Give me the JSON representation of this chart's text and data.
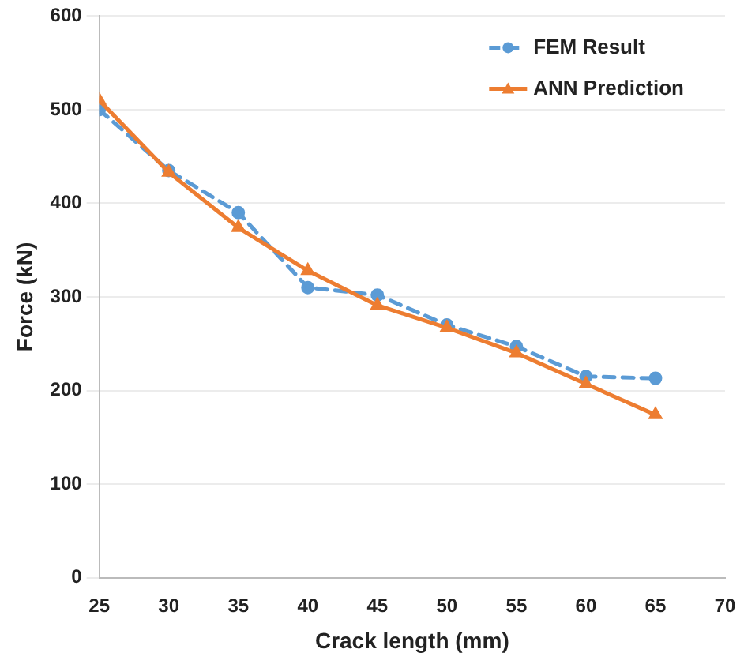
{
  "chart_data": {
    "type": "line",
    "xlabel": "Crack length (mm)",
    "ylabel": "Force (kN)",
    "x": [
      25,
      30,
      35,
      40,
      45,
      50,
      55,
      60,
      65
    ],
    "xlim": [
      25,
      70
    ],
    "xticks": [
      25,
      30,
      35,
      40,
      45,
      50,
      55,
      60,
      65,
      70
    ],
    "ylim": [
      0,
      600
    ],
    "yticks": [
      0,
      100,
      200,
      300,
      400,
      500,
      600
    ],
    "grid": "y",
    "legend": "top right",
    "series": [
      {
        "name": "FEM Result",
        "color": "#5b9bd5",
        "marker": "circle",
        "line_style": "dashed",
        "values": [
          500,
          435,
          390,
          310,
          302,
          270,
          247,
          215,
          213
        ]
      },
      {
        "name": "ANN Prediction",
        "color": "#ed7d31",
        "marker": "triangle",
        "line_style": "solid",
        "values": [
          510,
          433,
          374,
          328,
          291,
          267,
          240,
          207,
          174
        ]
      }
    ]
  }
}
